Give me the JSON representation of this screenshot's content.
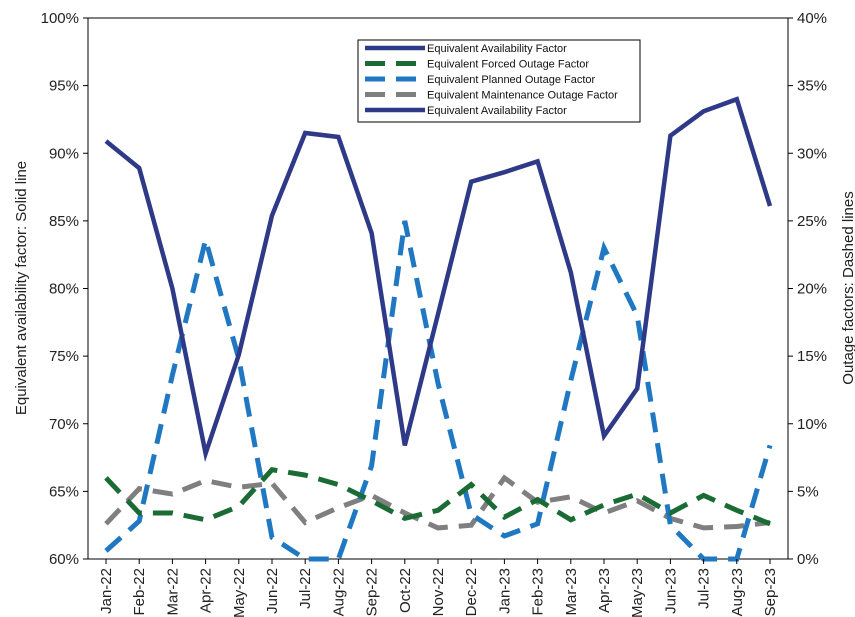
{
  "chart_data": {
    "type": "line",
    "categories": [
      "Jan-22",
      "Feb-22",
      "Mar-22",
      "Apr-22",
      "May-22",
      "Jun-22",
      "Jul-22",
      "Aug-22",
      "Sep-22",
      "Oct-22",
      "Nov-22",
      "Dec-22",
      "Jan-23",
      "Feb-23",
      "Mar-23",
      "Apr-23",
      "May-23",
      "Jun-23",
      "Jul-23",
      "Aug-23",
      "Sep-23"
    ],
    "ylabel": "Equivalent availability factor: Solid line",
    "y2label": "Outage factors: Dashed lines",
    "ylim": [
      0.6,
      1.0
    ],
    "y2lim": [
      0.0,
      0.4
    ],
    "yticks": [
      "60%",
      "65%",
      "70%",
      "75%",
      "80%",
      "85%",
      "90%",
      "95%",
      "100%"
    ],
    "y2ticks": [
      "0%",
      "5%",
      "10%",
      "15%",
      "20%",
      "25%",
      "30%",
      "35%",
      "40%"
    ],
    "grid": false,
    "legend_position": "top-center",
    "series": [
      {
        "name": "Equivalent Availability Factor",
        "axis": "left",
        "style": "solid",
        "color": "#2E3A87",
        "values": [
          0.909,
          0.889,
          0.8,
          0.678,
          0.751,
          0.854,
          0.915,
          0.912,
          0.841,
          0.684,
          0.781,
          0.879,
          0.886,
          0.894,
          0.812,
          0.691,
          0.726,
          0.913,
          0.931,
          0.94,
          0.861
        ]
      },
      {
        "name": "Equivalent Forced Outage Factor",
        "axis": "right",
        "style": "dashed",
        "color": "#1B6B35",
        "values": [
          0.06,
          0.034,
          0.034,
          0.029,
          0.039,
          0.066,
          0.062,
          0.055,
          0.043,
          0.03,
          0.036,
          0.055,
          0.031,
          0.044,
          0.029,
          0.04,
          0.048,
          0.034,
          0.047,
          0.036,
          0.026
        ]
      },
      {
        "name": "Equivalent Planned Outage Factor",
        "axis": "right",
        "style": "dashed",
        "color": "#1F78C1",
        "values": [
          0.006,
          0.028,
          0.136,
          0.236,
          0.148,
          0.016,
          0.0,
          0.0,
          0.069,
          0.25,
          0.13,
          0.033,
          0.017,
          0.026,
          0.132,
          0.23,
          0.18,
          0.025,
          0.0,
          0.0,
          0.084
        ]
      },
      {
        "name": "Equivalent Maintenance Outage Factor",
        "axis": "right",
        "style": "dashed",
        "color": "#7F7F7F",
        "values": [
          0.026,
          0.052,
          0.048,
          0.058,
          0.053,
          0.056,
          0.027,
          0.038,
          0.047,
          0.034,
          0.023,
          0.025,
          0.06,
          0.042,
          0.046,
          0.034,
          0.043,
          0.03,
          0.023,
          0.024,
          0.027
        ]
      }
    ],
    "legend_entries": [
      "Equivalent Availability Factor",
      "Equivalent Forced Outage Factor",
      "Equivalent Planned Outage Factor",
      "Equivalent Maintenance Outage Factor",
      "Equivalent Availability Factor"
    ]
  }
}
